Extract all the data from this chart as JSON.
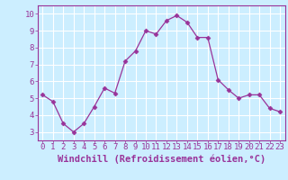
{
  "x": [
    0,
    1,
    2,
    3,
    4,
    5,
    6,
    7,
    8,
    9,
    10,
    11,
    12,
    13,
    14,
    15,
    16,
    17,
    18,
    19,
    20,
    21,
    22,
    23
  ],
  "y": [
    5.2,
    4.8,
    3.5,
    3.0,
    3.5,
    4.5,
    5.6,
    5.3,
    7.2,
    7.8,
    9.0,
    8.8,
    9.6,
    9.9,
    9.5,
    8.6,
    8.6,
    6.1,
    5.5,
    5.0,
    5.2,
    5.2,
    4.4,
    4.2
  ],
  "line_color": "#993399",
  "marker": "D",
  "marker_size": 2.5,
  "xlim": [
    -0.5,
    23.5
  ],
  "ylim": [
    2.5,
    10.5
  ],
  "yticks": [
    3,
    4,
    5,
    6,
    7,
    8,
    9,
    10
  ],
  "xticks": [
    0,
    1,
    2,
    3,
    4,
    5,
    6,
    7,
    8,
    9,
    10,
    11,
    12,
    13,
    14,
    15,
    16,
    17,
    18,
    19,
    20,
    21,
    22,
    23
  ],
  "xlabel": "Windchill (Refroidissement éolien,°C)",
  "background_color": "#cceeff",
  "grid_color": "#ffffff",
  "tick_color": "#993399",
  "label_color": "#993399",
  "tick_fontsize": 6.5,
  "xlabel_fontsize": 7.5,
  "spine_color": "#993399"
}
